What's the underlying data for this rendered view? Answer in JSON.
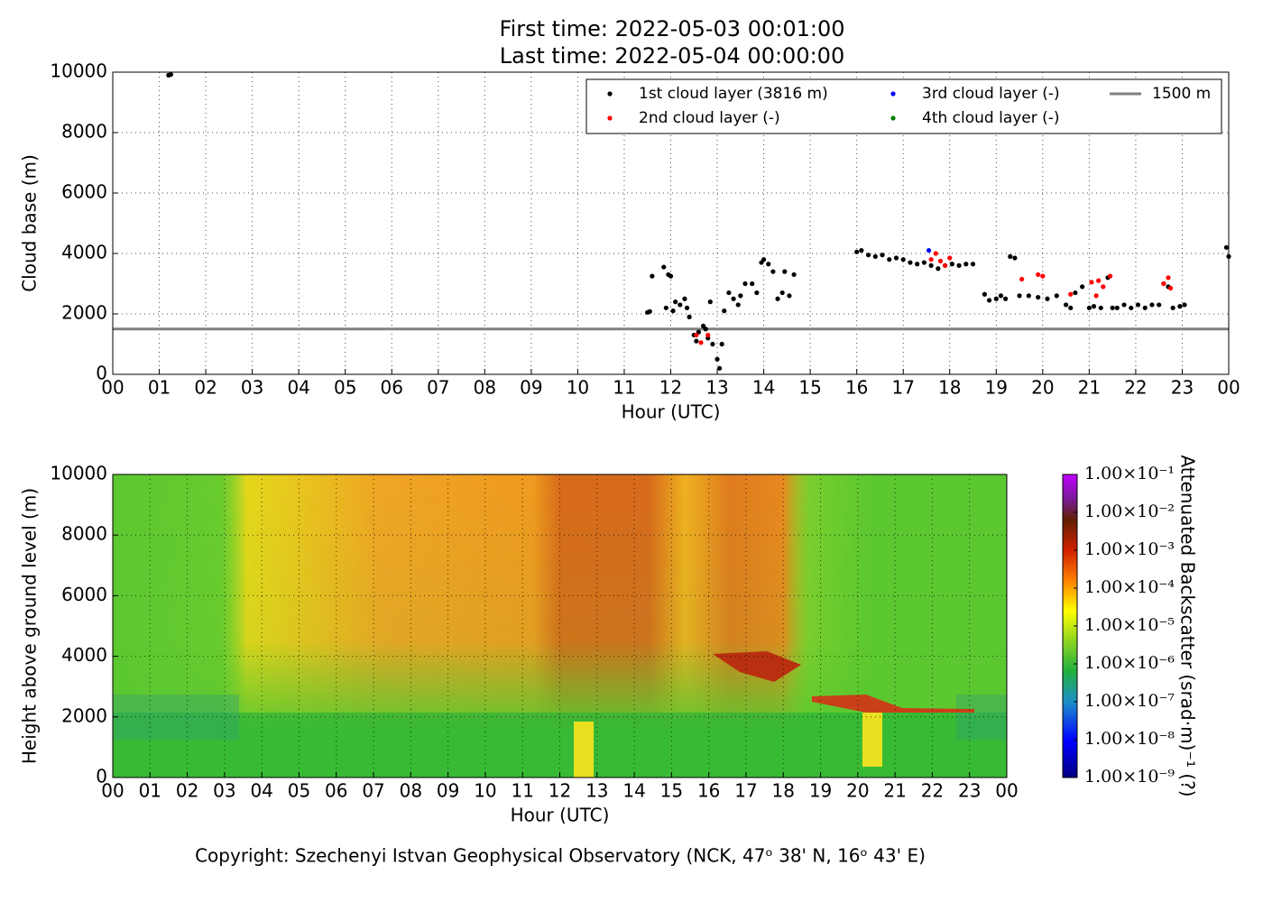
{
  "chart_data": [
    {
      "type": "scatter",
      "title": [
        "First time: 2022-05-03 00:01:00",
        "Last time: 2022-05-04 00:00:00"
      ],
      "x_label": "Hour (UTC)",
      "y_label": "Cloud base (m)",
      "xlim": [
        0,
        24
      ],
      "xticks": [
        {
          "value": 0,
          "label": "00"
        },
        {
          "value": 1,
          "label": "01"
        },
        {
          "value": 2,
          "label": "02"
        },
        {
          "value": 3,
          "label": "03"
        },
        {
          "value": 4,
          "label": "04"
        },
        {
          "value": 5,
          "label": "05"
        },
        {
          "value": 6,
          "label": "06"
        },
        {
          "value": 7,
          "label": "07"
        },
        {
          "value": 8,
          "label": "08"
        },
        {
          "value": 9,
          "label": "09"
        },
        {
          "value": 10,
          "label": "10"
        },
        {
          "value": 11,
          "label": "11"
        },
        {
          "value": 12,
          "label": "12"
        },
        {
          "value": 13,
          "label": "13"
        },
        {
          "value": 14,
          "label": "14"
        },
        {
          "value": 15,
          "label": "15"
        },
        {
          "value": 16,
          "label": "16"
        },
        {
          "value": 17,
          "label": "17"
        },
        {
          "value": 18,
          "label": "18"
        },
        {
          "value": 19,
          "label": "19"
        },
        {
          "value": 20,
          "label": "20"
        },
        {
          "value": 21,
          "label": "21"
        },
        {
          "value": 22,
          "label": "22"
        },
        {
          "value": 23,
          "label": "23"
        },
        {
          "value": 24,
          "label": "00"
        }
      ],
      "ylim": [
        0,
        10000
      ],
      "yticks": [
        0,
        2000,
        4000,
        6000,
        8000,
        10000
      ],
      "grid": true,
      "legend": "upper right",
      "series": [
        {
          "name": "1st cloud layer (3816 m)",
          "color": "#000000",
          "x": [
            1.2,
            1.25,
            11.5,
            11.55,
            11.6,
            11.85,
            11.95,
            12.0,
            11.9,
            12.05,
            12.1,
            12.2,
            12.3,
            12.35,
            12.4,
            12.5,
            12.55,
            12.6,
            12.7,
            12.75,
            12.8,
            12.85,
            12.9,
            13.0,
            13.05,
            13.1,
            13.15,
            13.25,
            13.35,
            13.45,
            13.5,
            13.6,
            13.75,
            13.85,
            13.95,
            14.0,
            14.1,
            14.2,
            14.3,
            14.4,
            14.45,
            14.55,
            14.65,
            16.0,
            16.1,
            16.25,
            16.4,
            16.55,
            16.7,
            16.85,
            17.0,
            17.15,
            17.3,
            17.45,
            17.6,
            17.75,
            17.9,
            18.05,
            18.2,
            18.35,
            18.5,
            18.75,
            18.85,
            19.0,
            19.1,
            19.2,
            19.3,
            19.4,
            19.5,
            19.7,
            19.9,
            20.1,
            20.3,
            20.5,
            20.6,
            20.7,
            20.85,
            21.0,
            21.1,
            21.25,
            21.4,
            21.5,
            21.6,
            21.75,
            21.9,
            22.05,
            22.2,
            22.35,
            22.5,
            22.6,
            22.7,
            22.8,
            22.95,
            23.05,
            23.95,
            24.0
          ],
          "values": [
            9900,
            9920,
            2050,
            2080,
            3250,
            3550,
            3300,
            3250,
            2200,
            2100,
            2400,
            2300,
            2500,
            2200,
            1900,
            1300,
            1100,
            1400,
            1600,
            1500,
            1200,
            2400,
            1000,
            500,
            200,
            1000,
            2100,
            2700,
            2500,
            2300,
            2600,
            3000,
            3000,
            2700,
            3700,
            3800,
            3650,
            3400,
            2500,
            2700,
            3400,
            2600,
            3300,
            4050,
            4100,
            3950,
            3900,
            3950,
            3800,
            3850,
            3800,
            3700,
            3650,
            3700,
            3600,
            3500,
            3600,
            3650,
            3600,
            3650,
            3650,
            2650,
            2450,
            2500,
            2600,
            2500,
            3900,
            3850,
            2600,
            2600,
            2550,
            2500,
            2600,
            2300,
            2200,
            2700,
            2900,
            2200,
            2250,
            2200,
            3200,
            2200,
            2200,
            2300,
            2200,
            2300,
            2200,
            2300,
            2300,
            3000,
            2900,
            2200,
            2250,
            2300,
            4200,
            3900
          ]
        },
        {
          "name": "2nd cloud layer (-)",
          "color": "#ff0000",
          "x": [
            12.55,
            12.65,
            12.8,
            17.6,
            17.7,
            17.8,
            17.9,
            18.0,
            19.55,
            19.9,
            20.0,
            20.6,
            21.05,
            21.15,
            21.2,
            21.3,
            21.45,
            22.6,
            22.7,
            22.75
          ],
          "values": [
            1300,
            1050,
            1300,
            3800,
            4000,
            3750,
            3600,
            3850,
            3150,
            3300,
            3250,
            2650,
            3050,
            2600,
            3100,
            2900,
            3250,
            3000,
            3200,
            2850
          ]
        },
        {
          "name": "3rd cloud layer (-)",
          "color": "#0000ff",
          "x": [
            17.55
          ],
          "values": [
            4100
          ]
        },
        {
          "name": "4th cloud layer (-)",
          "color": "#008000",
          "x": [],
          "values": []
        }
      ],
      "hlines": [
        {
          "name": "1500 m",
          "value": 1500,
          "color": "#808080"
        }
      ]
    },
    {
      "type": "heatmap",
      "x_label": "Hour (UTC)",
      "y_label": "Height above ground level (m)",
      "xlim": [
        0,
        24
      ],
      "xticks": [
        {
          "value": 0,
          "label": "00"
        },
        {
          "value": 1,
          "label": "01"
        },
        {
          "value": 2,
          "label": "02"
        },
        {
          "value": 3,
          "label": "03"
        },
        {
          "value": 4,
          "label": "04"
        },
        {
          "value": 5,
          "label": "05"
        },
        {
          "value": 6,
          "label": "06"
        },
        {
          "value": 7,
          "label": "07"
        },
        {
          "value": 8,
          "label": "08"
        },
        {
          "value": 9,
          "label": "09"
        },
        {
          "value": 10,
          "label": "10"
        },
        {
          "value": 11,
          "label": "11"
        },
        {
          "value": 12,
          "label": "12"
        },
        {
          "value": 13,
          "label": "13"
        },
        {
          "value": 14,
          "label": "14"
        },
        {
          "value": 15,
          "label": "15"
        },
        {
          "value": 16,
          "label": "16"
        },
        {
          "value": 17,
          "label": "17"
        },
        {
          "value": 18,
          "label": "18"
        },
        {
          "value": 19,
          "label": "19"
        },
        {
          "value": 20,
          "label": "20"
        },
        {
          "value": 21,
          "label": "21"
        },
        {
          "value": 22,
          "label": "22"
        },
        {
          "value": 23,
          "label": "23"
        },
        {
          "value": 24,
          "label": "00"
        }
      ],
      "ylim": [
        0,
        10000
      ],
      "yticks": [
        0,
        2000,
        4000,
        6000,
        8000,
        10000
      ],
      "grid": true,
      "colorbar_label": "Attenuated Backscatter (srad·m)⁻¹ (?)",
      "clim": [
        1e-09,
        0.1
      ],
      "clog": true,
      "cticks": [
        {
          "value": 1e-09,
          "label": "1.00×10⁻⁹"
        },
        {
          "value": 1e-08,
          "label": "1.00×10⁻⁸"
        },
        {
          "value": 1e-07,
          "label": "1.00×10⁻⁷"
        },
        {
          "value": 1e-06,
          "label": "1.00×10⁻⁶"
        },
        {
          "value": 1e-05,
          "label": "1.00×10⁻⁵"
        },
        {
          "value": 0.0001,
          "label": "1.00×10⁻⁴"
        },
        {
          "value": 0.001,
          "label": "1.00×10⁻³"
        },
        {
          "value": 0.01,
          "label": "1.00×10⁻²"
        },
        {
          "value": 0.1,
          "label": "1.00×10⁻¹"
        }
      ]
    }
  ],
  "footer": "Copyright: Szechenyi Istvan Geophysical Observatory (NCK, 47ᵒ 38' N, 16ᵒ 43' E)"
}
